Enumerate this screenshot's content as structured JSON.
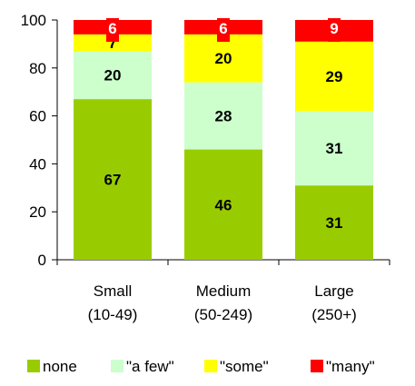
{
  "chart_data": {
    "type": "bar",
    "stacked": true,
    "categories": [
      "Small\n(10-49)",
      "Medium\n(50-249)",
      "Large\n(250+)"
    ],
    "series": [
      {
        "name": "none",
        "values": [
          67,
          46,
          31
        ],
        "color": "#99cc00"
      },
      {
        "name": "\"a few\"",
        "values": [
          20,
          28,
          31
        ],
        "color": "#ccffcc"
      },
      {
        "name": "\"some\"",
        "values": [
          7,
          20,
          29
        ],
        "color": "#ffff00"
      },
      {
        "name": "\"many\"",
        "values": [
          6,
          6,
          9
        ],
        "color": "#ff0000"
      }
    ],
    "ylim": [
      0,
      100
    ],
    "yticks": [
      0,
      20,
      40,
      60,
      80,
      100
    ],
    "grid": false,
    "legend_position": "bottom"
  }
}
